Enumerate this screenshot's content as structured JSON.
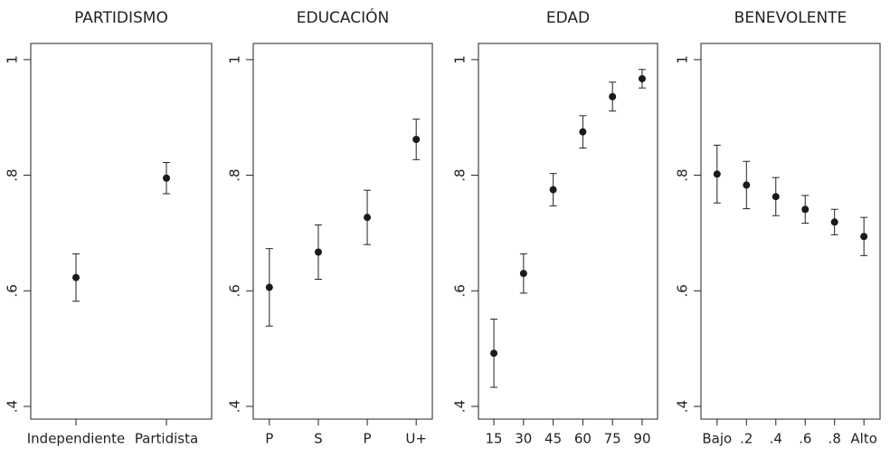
{
  "chart_data": [
    {
      "type": "errorbar",
      "title": "PARTIDISMO",
      "categories": [
        "Independiente",
        "Partidista"
      ],
      "values": [
        0.623,
        0.795
      ],
      "errors": [
        0.041,
        0.027
      ],
      "color": "#1a1a1a",
      "ylim": [
        0.378,
        1.028
      ],
      "yticks": [
        {
          "value": 0.4,
          "label": ".4"
        },
        {
          "value": 0.6,
          "label": ".6"
        },
        {
          "value": 0.8,
          "label": ".8"
        },
        1
      ]
    },
    {
      "type": "errorbar",
      "title": "EDUCACIÓN",
      "categories": [
        "P",
        "S",
        "P",
        "U+"
      ],
      "values": [
        0.606,
        0.667,
        0.727,
        0.862
      ],
      "errors": [
        0.067,
        0.047,
        0.047,
        0.035
      ],
      "color": "#1a1a1a",
      "ylim": [
        0.378,
        1.028
      ],
      "yticks": [
        {
          "value": 0.4,
          "label": ".4"
        },
        {
          "value": 0.6,
          "label": ".6"
        },
        {
          "value": 0.8,
          "label": ".8"
        },
        1
      ]
    },
    {
      "type": "errorbar",
      "title": "EDAD",
      "x": [
        15,
        30,
        45,
        60,
        75,
        90
      ],
      "values": [
        0.492,
        0.63,
        0.775,
        0.875,
        0.936,
        0.967
      ],
      "errors": [
        0.059,
        0.034,
        0.028,
        0.028,
        0.025,
        0.016
      ],
      "color": "#1a1a1a",
      "xlim": [
        7.2,
        97.8
      ],
      "xticks": [
        15,
        30,
        45,
        60,
        75,
        90
      ],
      "ylim": [
        0.378,
        1.028
      ],
      "yticks": [
        {
          "value": 0.4,
          "label": ".4"
        },
        {
          "value": 0.6,
          "label": ".6"
        },
        {
          "value": 0.8,
          "label": ".8"
        },
        1
      ]
    },
    {
      "type": "errorbar",
      "title": "BENEVOLENTE",
      "categories": [
        "Bajo",
        ".2",
        ".4",
        ".6",
        ".8",
        "Alto"
      ],
      "values": [
        0.802,
        0.783,
        0.763,
        0.741,
        0.719,
        0.694
      ],
      "errors": [
        0.05,
        0.041,
        0.033,
        0.024,
        0.022,
        0.033
      ],
      "color": "#1a1a1a",
      "ylim": [
        0.378,
        1.028
      ],
      "yticks": [
        {
          "value": 0.4,
          "label": ".4"
        },
        {
          "value": 0.6,
          "label": ".6"
        },
        {
          "value": 0.8,
          "label": ".8"
        },
        1
      ]
    }
  ]
}
